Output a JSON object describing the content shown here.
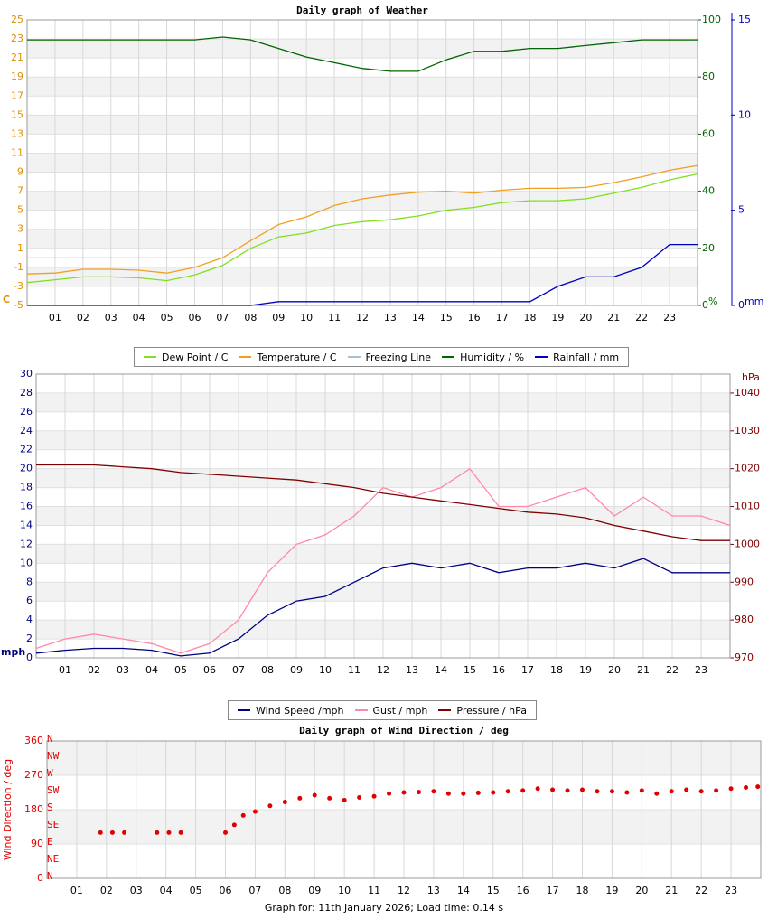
{
  "chart_data": [
    {
      "type": "line",
      "title": "Daily graph of Weather",
      "y_label": "C",
      "y2_label": "%",
      "y3_label": "mm",
      "x": [
        0,
        1,
        2,
        3,
        4,
        5,
        6,
        7,
        8,
        9,
        10,
        11,
        12,
        13,
        14,
        15,
        16,
        17,
        18,
        19,
        20,
        21,
        22,
        23,
        24
      ],
      "xlim": [
        0,
        24
      ],
      "xticks": [
        {
          "value": 1,
          "label": "01"
        },
        {
          "value": 2,
          "label": "02"
        },
        {
          "value": 3,
          "label": "03"
        },
        {
          "value": 4,
          "label": "04"
        },
        {
          "value": 5,
          "label": "05"
        },
        {
          "value": 6,
          "label": "06"
        },
        {
          "value": 7,
          "label": "07"
        },
        {
          "value": 8,
          "label": "08"
        },
        {
          "value": 9,
          "label": "09"
        },
        {
          "value": 10,
          "label": "10"
        },
        {
          "value": 11,
          "label": "11"
        },
        {
          "value": 12,
          "label": "12"
        },
        {
          "value": 13,
          "label": "13"
        },
        {
          "value": 14,
          "label": "14"
        },
        {
          "value": 15,
          "label": "15"
        },
        {
          "value": 16,
          "label": "16"
        },
        {
          "value": 17,
          "label": "17"
        },
        {
          "value": 18,
          "label": "18"
        },
        {
          "value": 19,
          "label": "19"
        },
        {
          "value": 20,
          "label": "20"
        },
        {
          "value": 21,
          "label": "21"
        },
        {
          "value": 22,
          "label": "22"
        },
        {
          "value": 23,
          "label": "23"
        }
      ],
      "ylim": [
        -5,
        25
      ],
      "yticks": [
        -5,
        -3,
        -1,
        1,
        3,
        5,
        7,
        9,
        11,
        13,
        15,
        17,
        19,
        21,
        23,
        25
      ],
      "ytick_color": "#e09000",
      "y2lim": [
        0,
        100
      ],
      "y2ticks": [
        0,
        20,
        40,
        60,
        80,
        100
      ],
      "y2tick_color": "#006400",
      "y3lim": [
        0,
        15
      ],
      "y3ticks": [
        0,
        5,
        10,
        15
      ],
      "y3tick_color": "#0000c0",
      "grid": true,
      "series": [
        {
          "name": "Dew Point / C",
          "color": "#80e020",
          "values": [
            -2.6,
            -2.3,
            -2.0,
            -2.0,
            -2.1,
            -2.4,
            -1.8,
            -0.8,
            1.0,
            2.2,
            2.6,
            3.4,
            3.8,
            4.0,
            4.4,
            5.0,
            5.3,
            5.8,
            6.0,
            6.0,
            6.2,
            6.8,
            7.4,
            8.2,
            8.8
          ]
        },
        {
          "name": "Temperature / C",
          "color": "#f0a020",
          "values": [
            -1.7,
            -1.6,
            -1.2,
            -1.2,
            -1.3,
            -1.6,
            -1.0,
            0.0,
            1.8,
            3.5,
            4.3,
            5.5,
            6.2,
            6.6,
            6.9,
            7.0,
            6.8,
            7.1,
            7.3,
            7.3,
            7.4,
            7.9,
            8.5,
            9.2,
            9.7
          ]
        },
        {
          "name": "Freezing Line",
          "color": "#a8c0d0",
          "level": 0
        },
        {
          "name": "Humidity / %",
          "color": "#006400",
          "axis": "y2",
          "values": [
            93,
            93,
            93,
            93,
            93,
            93,
            93,
            94,
            93,
            90,
            87,
            85,
            83,
            82,
            82,
            86,
            89,
            89,
            90,
            90,
            91,
            92,
            93,
            93,
            93
          ]
        },
        {
          "name": "Rainfall / mm",
          "color": "#0000c0",
          "axis": "y3",
          "values": [
            0,
            0,
            0,
            0,
            0,
            0,
            0,
            0,
            0,
            0.2,
            0.2,
            0.2,
            0.2,
            0.2,
            0.2,
            0.2,
            0.2,
            0.2,
            0.2,
            1.0,
            1.5,
            1.5,
            2.0,
            3.2,
            3.2
          ]
        }
      ]
    },
    {
      "type": "line",
      "y_label": "mph",
      "y2_label": "hPa",
      "x": [
        0,
        1,
        2,
        3,
        4,
        5,
        6,
        7,
        8,
        9,
        10,
        11,
        12,
        13,
        14,
        15,
        16,
        17,
        18,
        19,
        20,
        21,
        22,
        23,
        24
      ],
      "xlim": [
        0,
        24
      ],
      "xticks": [
        {
          "value": 1,
          "label": "01"
        },
        {
          "value": 2,
          "label": "02"
        },
        {
          "value": 3,
          "label": "03"
        },
        {
          "value": 4,
          "label": "04"
        },
        {
          "value": 5,
          "label": "05"
        },
        {
          "value": 6,
          "label": "06"
        },
        {
          "value": 7,
          "label": "07"
        },
        {
          "value": 8,
          "label": "08"
        },
        {
          "value": 9,
          "label": "09"
        },
        {
          "value": 10,
          "label": "10"
        },
        {
          "value": 11,
          "label": "11"
        },
        {
          "value": 12,
          "label": "12"
        },
        {
          "value": 13,
          "label": "13"
        },
        {
          "value": 14,
          "label": "14"
        },
        {
          "value": 15,
          "label": "15"
        },
        {
          "value": 16,
          "label": "16"
        },
        {
          "value": 17,
          "label": "17"
        },
        {
          "value": 18,
          "label": "18"
        },
        {
          "value": 19,
          "label": "19"
        },
        {
          "value": 20,
          "label": "20"
        },
        {
          "value": 21,
          "label": "21"
        },
        {
          "value": 22,
          "label": "22"
        },
        {
          "value": 23,
          "label": "23"
        }
      ],
      "ylim": [
        0,
        30
      ],
      "yticks": [
        0,
        2,
        4,
        6,
        8,
        10,
        12,
        14,
        16,
        18,
        20,
        22,
        24,
        26,
        28,
        30
      ],
      "ytick_color": "#000080",
      "y2lim": [
        970,
        1045
      ],
      "y2ticks": [
        970,
        980,
        990,
        1000,
        1010,
        1020,
        1030,
        1040
      ],
      "y2tick_color": "#800000",
      "grid": true,
      "series": [
        {
          "name": "Wind Speed /mph",
          "color": "#000080",
          "values": [
            0.5,
            0.8,
            1.0,
            1.0,
            0.8,
            0.2,
            0.5,
            2,
            4.5,
            6,
            6.5,
            8,
            9.5,
            10,
            9.5,
            10,
            9,
            9.5,
            9.5,
            10,
            9.5,
            10.5,
            9,
            9,
            9
          ]
        },
        {
          "name": "Gust / mph",
          "color": "#ff88aa",
          "values": [
            1,
            2,
            2.5,
            2,
            1.5,
            0.5,
            1.5,
            4,
            9,
            12,
            13,
            15,
            18,
            17,
            18,
            20,
            16,
            16,
            17,
            18,
            15,
            17,
            15,
            15,
            14
          ]
        },
        {
          "name": "Pressure / hPa",
          "color": "#800000",
          "axis": "y2",
          "values": [
            1021,
            1021,
            1021,
            1020.5,
            1020,
            1019,
            1018.5,
            1018,
            1017.5,
            1017,
            1016,
            1015,
            1013.5,
            1012.5,
            1011.5,
            1010.5,
            1009.5,
            1008.5,
            1008,
            1007,
            1005,
            1003.5,
            1002,
            1001,
            1001
          ]
        }
      ]
    },
    {
      "type": "scatter",
      "title": "Daily graph of Wind Direction / deg",
      "y_label": "Wind Direction / deg",
      "compass_labels": [
        "N",
        "NW",
        "W",
        "SW",
        "S",
        "SE",
        "E",
        "NE",
        "N"
      ],
      "x": [
        1.8,
        2.2,
        2.6,
        3.7,
        4.1,
        4.5,
        6.0,
        6.3,
        6.6,
        7.0,
        7.5,
        8.0,
        8.5,
        9.0,
        9.5,
        10.0,
        10.5,
        11.0,
        11.5,
        12.0,
        12.5,
        13.0,
        13.5,
        14.0,
        14.5,
        15.0,
        15.5,
        16.0,
        16.5,
        17.0,
        17.5,
        18.0,
        18.5,
        19.0,
        19.5,
        20.0,
        20.5,
        21.0,
        21.5,
        22.0,
        22.5,
        23.0,
        23.5,
        23.9
      ],
      "xlim": [
        0,
        24
      ],
      "xticks": [
        {
          "value": 1,
          "label": "01"
        },
        {
          "value": 2,
          "label": "02"
        },
        {
          "value": 3,
          "label": "03"
        },
        {
          "value": 4,
          "label": "04"
        },
        {
          "value": 5,
          "label": "05"
        },
        {
          "value": 6,
          "label": "06"
        },
        {
          "value": 7,
          "label": "07"
        },
        {
          "value": 8,
          "label": "08"
        },
        {
          "value": 9,
          "label": "09"
        },
        {
          "value": 10,
          "label": "10"
        },
        {
          "value": 11,
          "label": "11"
        },
        {
          "value": 12,
          "label": "12"
        },
        {
          "value": 13,
          "label": "13"
        },
        {
          "value": 14,
          "label": "14"
        },
        {
          "value": 15,
          "label": "15"
        },
        {
          "value": 16,
          "label": "16"
        },
        {
          "value": 17,
          "label": "17"
        },
        {
          "value": 18,
          "label": "18"
        },
        {
          "value": 19,
          "label": "19"
        },
        {
          "value": 20,
          "label": "20"
        },
        {
          "value": 21,
          "label": "21"
        },
        {
          "value": 22,
          "label": "22"
        },
        {
          "value": 23,
          "label": "23"
        }
      ],
      "ylim": [
        0,
        360
      ],
      "yticks": [
        0,
        90,
        180,
        270,
        360
      ],
      "ytick_color": "#e00000",
      "grid": true,
      "series": [
        {
          "color": "#e00000",
          "values": [
            120,
            120,
            120,
            120,
            120,
            120,
            120,
            140,
            165,
            175,
            190,
            200,
            210,
            218,
            210,
            205,
            212,
            215,
            222,
            225,
            226,
            228,
            222,
            222,
            224,
            225,
            228,
            230,
            235,
            232,
            230,
            232,
            228,
            228,
            225,
            230,
            222,
            228,
            232,
            228,
            230,
            235,
            238,
            240
          ]
        }
      ]
    }
  ],
  "footer": "Graph for: 11th January 2026; Load time: 0.14 s"
}
